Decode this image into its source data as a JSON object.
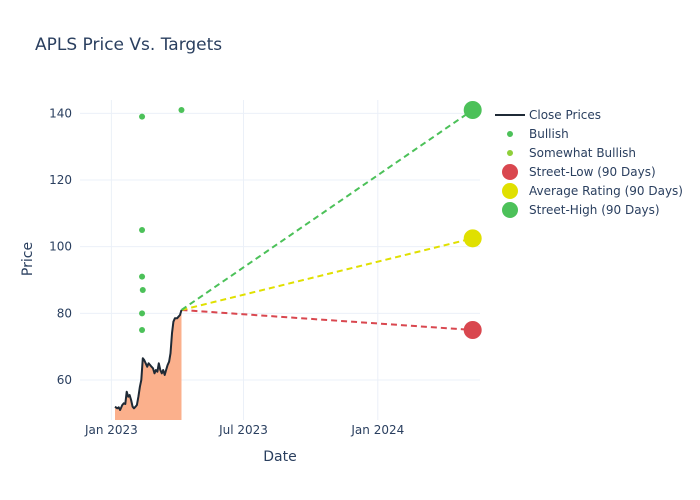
{
  "chart_data": {
    "type": "line",
    "title": "APLS Price Vs. Targets",
    "xlabel": "Date",
    "ylabel": "Price",
    "x_range": [
      "2022-11-19",
      "2024-05-20"
    ],
    "ylim": [
      48,
      144
    ],
    "x_ticks": [
      {
        "date": "2023-01-01",
        "label": "Jan 2023"
      },
      {
        "date": "2023-07-01",
        "label": "Jul 2023"
      },
      {
        "date": "2024-01-01",
        "label": "Jan 2024"
      }
    ],
    "y_ticks": [
      60,
      80,
      100,
      120,
      140
    ],
    "grid": true,
    "legend_position": "right",
    "series": [
      {
        "name": "Close Prices",
        "kind": "line",
        "color": "#1f2a36",
        "fill_color": "#fbb08c",
        "points": [
          [
            "2023-01-06",
            52
          ],
          [
            "2023-01-09",
            51.5
          ],
          [
            "2023-01-11",
            51.8
          ],
          [
            "2023-01-13",
            51
          ],
          [
            "2023-01-16",
            52.5
          ],
          [
            "2023-01-18",
            53
          ],
          [
            "2023-01-20",
            52.8
          ],
          [
            "2023-01-22",
            56.5
          ],
          [
            "2023-01-24",
            55
          ],
          [
            "2023-01-26",
            55.5
          ],
          [
            "2023-01-28",
            54
          ],
          [
            "2023-01-30",
            52
          ],
          [
            "2023-02-01",
            51.5
          ],
          [
            "2023-02-03",
            52
          ],
          [
            "2023-02-05",
            52.5
          ],
          [
            "2023-02-07",
            55
          ],
          [
            "2023-02-09",
            58
          ],
          [
            "2023-02-11",
            60
          ],
          [
            "2023-02-13",
            66.5
          ],
          [
            "2023-02-15",
            66
          ],
          [
            "2023-02-17",
            65
          ],
          [
            "2023-02-19",
            64
          ],
          [
            "2023-02-21",
            65
          ],
          [
            "2023-02-23",
            64.5
          ],
          [
            "2023-02-25",
            64
          ],
          [
            "2023-02-27",
            63.5
          ],
          [
            "2023-03-01",
            62
          ],
          [
            "2023-03-03",
            63
          ],
          [
            "2023-03-05",
            62.5
          ],
          [
            "2023-03-07",
            65
          ],
          [
            "2023-03-09",
            63
          ],
          [
            "2023-03-11",
            62
          ],
          [
            "2023-03-13",
            63
          ],
          [
            "2023-03-15",
            61.5
          ],
          [
            "2023-03-17",
            63
          ],
          [
            "2023-03-19",
            64.5
          ],
          [
            "2023-03-21",
            65.5
          ],
          [
            "2023-03-23",
            68
          ],
          [
            "2023-03-25",
            74
          ],
          [
            "2023-03-27",
            77.5
          ],
          [
            "2023-03-29",
            78.5
          ],
          [
            "2023-04-01",
            78.5
          ],
          [
            "2023-04-03",
            79
          ],
          [
            "2023-04-05",
            79.5
          ],
          [
            "2023-04-07",
            81
          ]
        ]
      },
      {
        "name": "Bullish",
        "kind": "scatter",
        "color": "#4cc159",
        "points": [
          [
            "2023-02-12",
            139
          ],
          [
            "2023-02-12",
            105
          ],
          [
            "2023-02-12",
            91
          ],
          [
            "2023-02-13",
            87
          ],
          [
            "2023-02-12",
            80
          ],
          [
            "2023-02-12",
            75
          ],
          [
            "2023-04-07",
            141
          ]
        ]
      },
      {
        "name": "Somewhat Bullish",
        "kind": "scatter",
        "color": "#8fcf3a",
        "points": []
      },
      {
        "name": "Street-Low (90 Days)",
        "kind": "target",
        "color": "#d9474f",
        "start": [
          "2023-04-07",
          81
        ],
        "end": [
          "2024-05-10",
          75
        ]
      },
      {
        "name": "Average Rating (90 Days)",
        "kind": "target",
        "color": "#e0e000",
        "start": [
          "2023-04-07",
          81
        ],
        "end": [
          "2024-05-10",
          102.5
        ]
      },
      {
        "name": "Street-High (90 Days)",
        "kind": "target",
        "color": "#4cc159",
        "start": [
          "2023-04-07",
          81
        ],
        "end": [
          "2024-05-10",
          141
        ]
      }
    ]
  }
}
